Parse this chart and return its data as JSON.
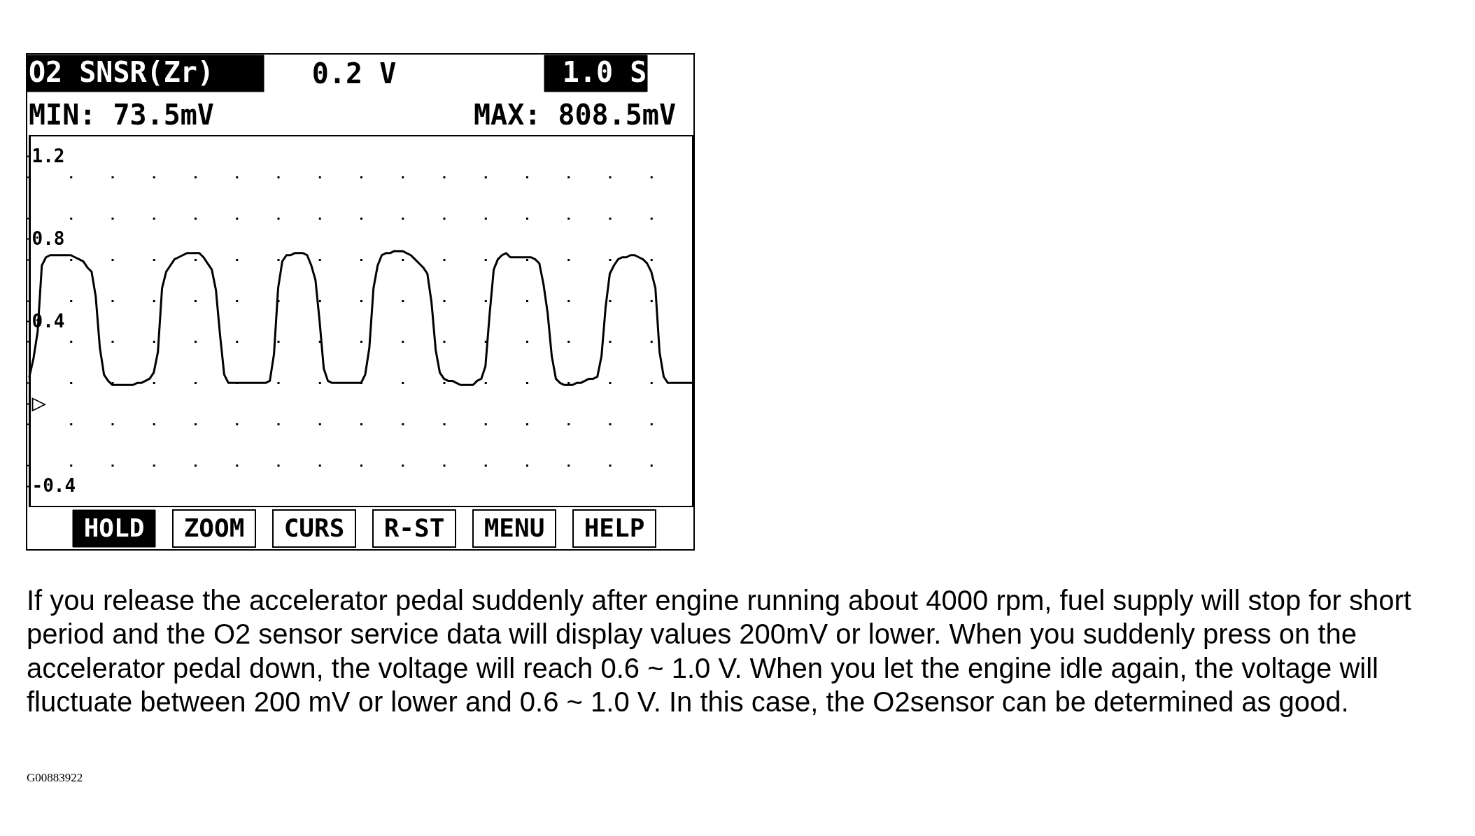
{
  "chart_data": {
    "type": "line",
    "title": "O2 SNSR(Zr)",
    "categories": [
      null,
      null,
      null,
      null,
      null,
      null,
      null,
      null,
      null,
      null,
      null,
      null,
      null,
      null,
      null,
      null,
      null,
      null,
      null,
      null,
      null,
      null,
      null,
      null,
      null,
      null,
      null,
      null,
      null,
      null,
      null,
      null,
      null,
      null,
      null,
      null,
      null,
      null,
      null,
      null,
      null,
      null,
      null,
      null,
      null,
      null,
      null,
      null,
      null,
      null,
      null,
      null,
      null,
      null,
      null,
      null,
      null,
      null,
      null,
      null,
      null,
      null,
      null,
      null,
      null,
      null,
      null,
      null,
      null,
      null,
      null,
      null,
      null,
      null,
      null,
      null,
      null,
      null,
      null,
      null,
      null,
      null,
      null,
      null,
      null,
      null,
      null,
      null,
      null,
      null,
      null,
      null,
      null,
      null,
      null,
      null,
      null,
      null,
      null,
      null,
      null,
      null,
      null,
      null,
      null,
      null,
      null,
      null,
      null,
      null,
      null,
      null,
      null,
      null,
      null,
      null,
      null,
      null,
      null,
      null,
      null,
      null,
      null,
      null,
      null,
      null,
      null,
      null,
      null,
      null,
      null,
      null,
      null,
      null,
      null,
      null,
      null,
      null,
      null,
      null,
      null,
      null,
      null,
      null,
      null,
      null,
      null,
      null,
      null,
      null,
      null,
      null,
      null,
      null,
      null,
      null,
      null,
      null,
      null,
      null,
      null
    ],
    "values": [
      0.13,
      0.22,
      0.35,
      0.67,
      0.71,
      0.72,
      0.72,
      0.72,
      0.72,
      0.72,
      0.72,
      0.71,
      0.7,
      0.69,
      0.66,
      0.64,
      0.52,
      0.27,
      0.14,
      0.11,
      0.09,
      0.09,
      0.09,
      0.09,
      0.09,
      0.09,
      0.1,
      0.1,
      0.11,
      0.12,
      0.15,
      0.25,
      0.56,
      0.64,
      0.67,
      0.7,
      0.71,
      0.72,
      0.73,
      0.73,
      0.73,
      0.73,
      0.71,
      0.68,
      0.65,
      0.55,
      0.33,
      0.14,
      0.1,
      0.1,
      0.1,
      0.1,
      0.1,
      0.1,
      0.1,
      0.1,
      0.1,
      0.1,
      0.11,
      0.24,
      0.56,
      0.69,
      0.72,
      0.72,
      0.73,
      0.73,
      0.73,
      0.72,
      0.67,
      0.6,
      0.4,
      0.17,
      0.11,
      0.1,
      0.1,
      0.1,
      0.1,
      0.1,
      0.1,
      0.1,
      0.1,
      0.14,
      0.27,
      0.56,
      0.67,
      0.72,
      0.73,
      0.73,
      0.74,
      0.74,
      0.74,
      0.73,
      0.72,
      0.7,
      0.68,
      0.66,
      0.63,
      0.49,
      0.26,
      0.15,
      0.12,
      0.11,
      0.11,
      0.1,
      0.09,
      0.09,
      0.09,
      0.09,
      0.11,
      0.12,
      0.18,
      0.43,
      0.65,
      0.7,
      0.72,
      0.73,
      0.71,
      0.71,
      0.71,
      0.71,
      0.71,
      0.71,
      0.7,
      0.68,
      0.58,
      0.44,
      0.23,
      0.12,
      0.1,
      0.09,
      0.09,
      0.09,
      0.1,
      0.1,
      0.11,
      0.12,
      0.12,
      0.13,
      0.23,
      0.47,
      0.63,
      0.67,
      0.7,
      0.71,
      0.71,
      0.72,
      0.72,
      0.71,
      0.7,
      0.68,
      0.64,
      0.56,
      0.25,
      0.13,
      0.1,
      0.1,
      0.1,
      0.1,
      0.1,
      0.1,
      0.1
    ],
    "color": "#000000",
    "ylim": [
      -0.5,
      1.3
    ],
    "yticks": [
      1.2,
      {
        "value": 1.1,
        "label": null
      },
      {
        "value": 0.9,
        "label": null
      },
      0.8,
      {
        "value": 0.7,
        "label": null
      },
      {
        "value": 0.5,
        "label": null
      },
      0.4,
      {
        "value": 0.3,
        "label": null
      },
      {
        "value": 0.1,
        "label": null
      },
      {
        "value": 0,
        "label": "▷"
      },
      {
        "value": -0.1,
        "label": null
      },
      {
        "value": -0.3,
        "label": null
      },
      -0.4
    ],
    "grid": "y",
    "tick_labels": "y",
    "annotations": [
      "0.2 V",
      "1.0 S",
      "MIN: 73.5mV",
      "MAX: 808.5mV",
      "HOLD",
      "ZOOM",
      "CURS",
      "R-ST",
      "MENU",
      "HELP",
      "If you release the accelerator pedal suddenly after engine running about 4000 rpm, fuel supply will stop for short period and the O2 sensor service data will display values 200mV or lower. When you suddenly press on the accelerator pedal down, the voltage will reach 0.6 ~ 1.0 V. When you let the engine idle again, the voltage will fluctuate between 200 mV or lower and 0.6 ~ 1.0 V. In this case, the O2sensor can be determined as good.",
      "G00883922"
    ]
  }
}
